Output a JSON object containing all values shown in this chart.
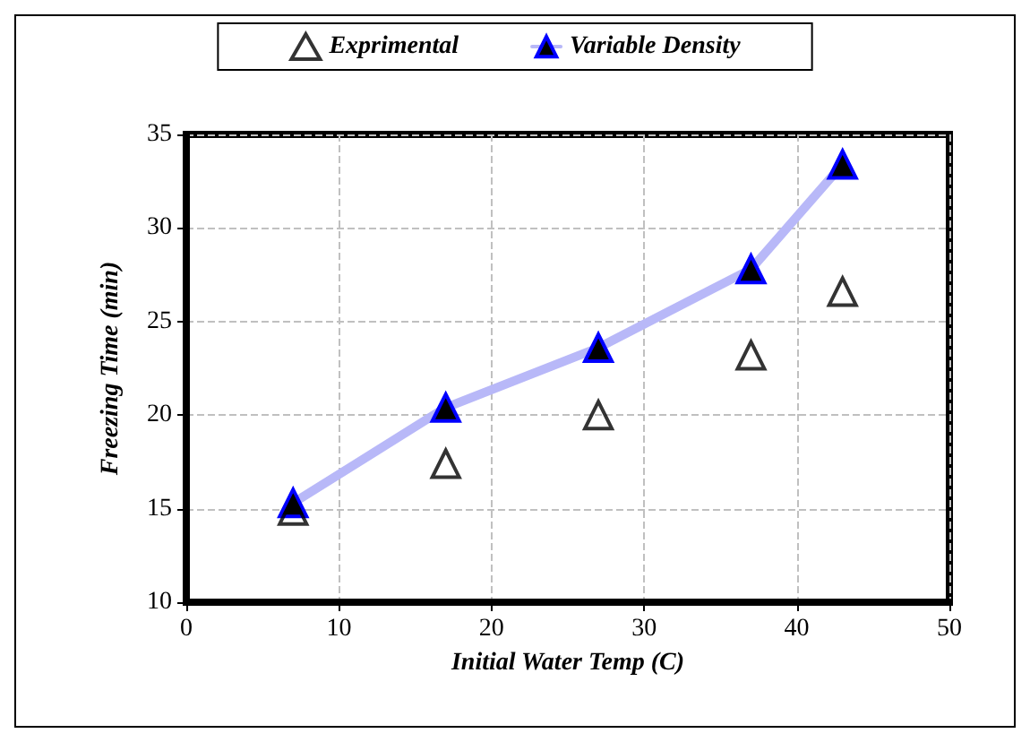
{
  "chart_data": {
    "type": "scatter",
    "xlabel": "Initial Water Temp (C)",
    "ylabel": "Freezing Time (min)",
    "x": [
      7,
      17,
      27,
      37,
      43
    ],
    "series": [
      {
        "name": "Exprimental",
        "color": "#000000",
        "values": [
          14.9,
          17.4,
          20.0,
          23.2,
          26.6
        ],
        "marker": "triangle"
      },
      {
        "name": "Variable Density",
        "type": "line",
        "color": "#0000ff",
        "values": [
          15.3,
          20.4,
          23.6,
          27.8,
          33.4
        ],
        "marker": "triangle"
      }
    ],
    "xlim": [
      0,
      50
    ],
    "xticks": [
      0,
      10,
      20,
      30,
      40,
      50
    ],
    "ylim": [
      10,
      35
    ],
    "yticks": [
      10,
      15,
      20,
      25,
      30,
      35
    ],
    "grid": true,
    "legend": "top"
  }
}
